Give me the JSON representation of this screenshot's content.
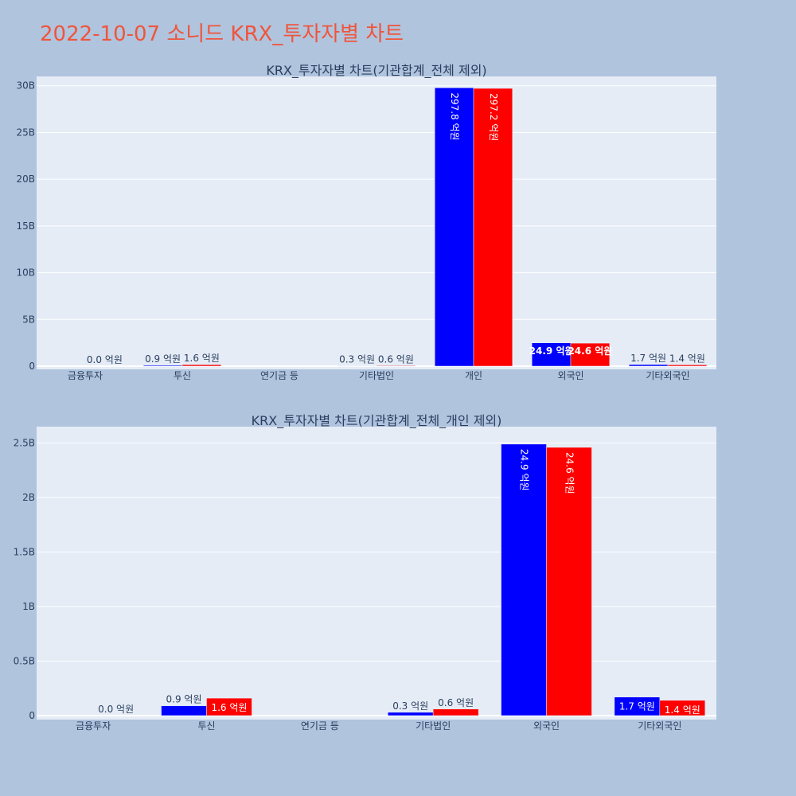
{
  "title": "2022-10-07 소니드 KRX_투자자별 차트",
  "colors": {
    "background": "#b0c4de",
    "plot_bg": "#e5ecf6",
    "title": "#ef553b",
    "series_a": "#0000ff",
    "series_b": "#ff0000"
  },
  "chart_data": [
    {
      "type": "bar",
      "title": "KRX_투자자별 차트(기관합계_전체 제외)",
      "categories": [
        "금융투자",
        "투신",
        "연기금 등",
        "기타법인",
        "개인",
        "외국인",
        "기타외국인"
      ],
      "ylim": [
        0,
        31000000000
      ],
      "y_ticks": [
        {
          "value": 0,
          "label": "0"
        },
        {
          "value": 5000000000,
          "label": "5B"
        },
        {
          "value": 10000000000,
          "label": "10B"
        },
        {
          "value": 15000000000,
          "label": "15B"
        },
        {
          "value": 20000000000,
          "label": "20B"
        },
        {
          "value": 25000000000,
          "label": "25B"
        },
        {
          "value": 30000000000,
          "label": "30B"
        }
      ],
      "grid": true,
      "series": [
        {
          "color": "#0000ff",
          "values": [
            0,
            90000000,
            0,
            30000000,
            29780000000,
            2490000000,
            170000000
          ],
          "labels": [
            "",
            "0.9 억원",
            "",
            "0.3 억원",
            "297.8 억원",
            "24.9 억원",
            "1.7 억원"
          ]
        },
        {
          "color": "#ff0000",
          "values": [
            0,
            160000000,
            0,
            60000000,
            29720000000,
            2460000000,
            140000000
          ],
          "labels": [
            "0.0 억원",
            "1.6 억원",
            "",
            "0.6 억원",
            "297.2 억원",
            "24.6 억원",
            "1.4 억원"
          ]
        }
      ]
    },
    {
      "type": "bar",
      "title": "KRX_투자자별 차트(기관합계_전체_개인 제외)",
      "categories": [
        "금융투자",
        "투신",
        "연기금 등",
        "기타법인",
        "외국인",
        "기타외국인"
      ],
      "ylim": [
        0,
        2650000000
      ],
      "y_ticks": [
        {
          "value": 0,
          "label": "0"
        },
        {
          "value": 500000000,
          "label": "0.5B"
        },
        {
          "value": 1000000000,
          "label": "1B"
        },
        {
          "value": 1500000000,
          "label": "1.5B"
        },
        {
          "value": 2000000000,
          "label": "2B"
        },
        {
          "value": 2500000000,
          "label": "2.5B"
        }
      ],
      "grid": true,
      "series": [
        {
          "color": "#0000ff",
          "values": [
            0,
            90000000,
            0,
            30000000,
            2490000000,
            170000000
          ],
          "labels": [
            "",
            "0.9 억원",
            "",
            "0.3 억원",
            "24.9 억원",
            "1.7 억원"
          ]
        },
        {
          "color": "#ff0000",
          "values": [
            0,
            160000000,
            0,
            60000000,
            2460000000,
            140000000
          ],
          "labels": [
            "0.0 억원",
            "1.6 억원",
            "",
            "0.6 억원",
            "24.6 억원",
            "1.4 억원"
          ]
        }
      ]
    }
  ]
}
